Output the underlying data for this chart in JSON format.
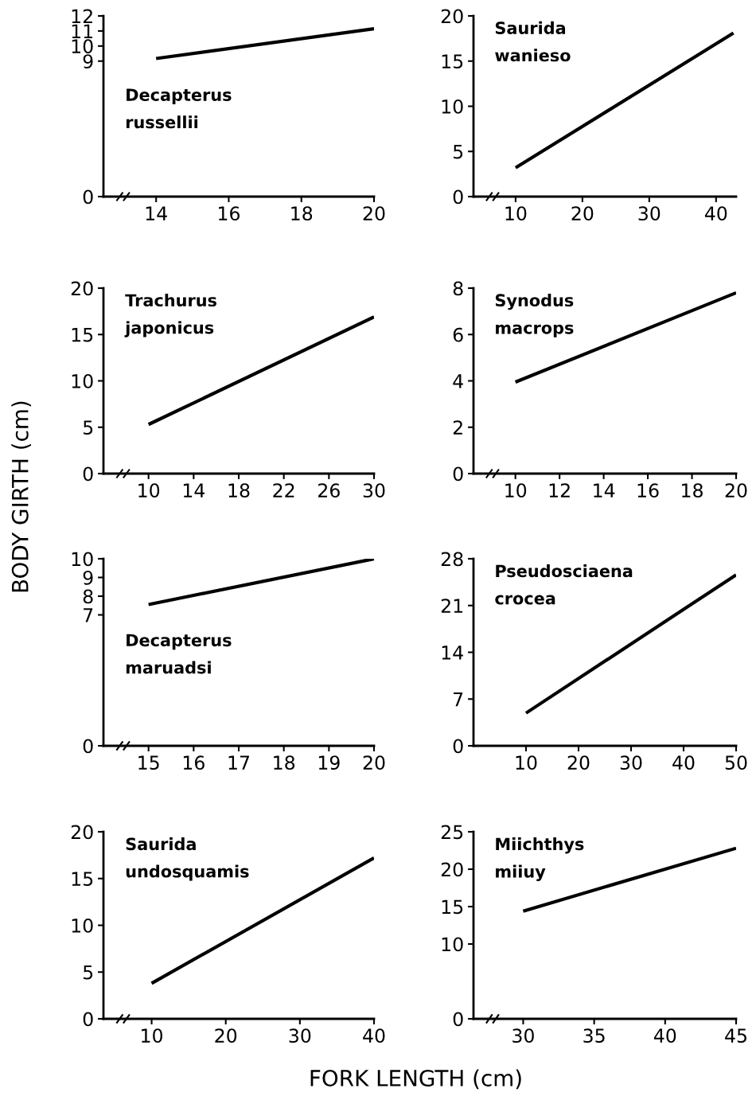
{
  "chart_data": [
    {
      "type": "line",
      "title": "Decapterus\nrussellii",
      "x": [
        14,
        20
      ],
      "series": [
        {
          "color": "#000000",
          "values": [
            9.17,
            11.15
          ]
        }
      ],
      "xlim": [
        12.55,
        20
      ],
      "xticks": [
        14,
        16,
        18,
        20
      ],
      "ylim": [
        0,
        12
      ],
      "yticks": [
        0,
        9,
        10,
        11,
        12
      ],
      "grid": false,
      "legend": false
    },
    {
      "type": "line",
      "title": "Saurida\nwanieso",
      "x": [
        10,
        42.6
      ],
      "series": [
        {
          "color": "#000000",
          "values": [
            3.2,
            18.1
          ]
        }
      ],
      "xlim": [
        3.7,
        43
      ],
      "xticks": [
        10,
        20,
        30,
        40
      ],
      "ylim": [
        0,
        20
      ],
      "yticks": [
        0,
        5,
        10,
        15,
        20
      ],
      "grid": false,
      "legend": false
    },
    {
      "type": "line",
      "title": "Trachurus\njaponicus",
      "x": [
        10,
        30
      ],
      "series": [
        {
          "color": "#000000",
          "values": [
            5.3,
            16.9
          ]
        }
      ],
      "xlim": [
        6,
        30
      ],
      "xticks": [
        10,
        14,
        18,
        22,
        26,
        30
      ],
      "ylim": [
        0,
        20
      ],
      "yticks": [
        0,
        5,
        10,
        15,
        20
      ],
      "grid": false,
      "legend": false
    },
    {
      "type": "line",
      "title": "Synodus\nmacrops",
      "x": [
        10,
        20
      ],
      "series": [
        {
          "color": "#000000",
          "values": [
            3.95,
            7.8
          ]
        }
      ],
      "xlim": [
        8.1,
        20
      ],
      "xticks": [
        10,
        12,
        14,
        16,
        18,
        20
      ],
      "ylim": [
        0,
        8
      ],
      "yticks": [
        0,
        2,
        4,
        6,
        8
      ],
      "grid": false,
      "legend": false
    },
    {
      "type": "line",
      "title": "Decapterus\nmaruadsi",
      "x": [
        15,
        20
      ],
      "series": [
        {
          "color": "#000000",
          "values": [
            7.55,
            10
          ]
        }
      ],
      "xlim": [
        14,
        20
      ],
      "xticks": [
        15,
        16,
        17,
        18,
        19,
        20
      ],
      "ylim": [
        0,
        10
      ],
      "yticks": [
        0,
        7,
        8,
        9,
        10
      ],
      "grid": false,
      "legend": false
    },
    {
      "type": "line",
      "title": "Pseudosciaena\ncrocea",
      "x": [
        10,
        50
      ],
      "series": [
        {
          "color": "#000000",
          "values": [
            4.9,
            25.6
          ]
        }
      ],
      "xlim": [
        0,
        50
      ],
      "xticks": [
        10,
        20,
        30,
        40,
        50
      ],
      "ylim": [
        0,
        28
      ],
      "yticks": [
        0,
        7,
        14,
        21,
        28
      ],
      "grid": false,
      "legend": false
    },
    {
      "type": "line",
      "title": "Saurida\nundosquamis",
      "x": [
        10,
        40
      ],
      "series": [
        {
          "color": "#000000",
          "values": [
            3.8,
            17.2
          ]
        }
      ],
      "xlim": [
        3.5,
        40
      ],
      "xticks": [
        10,
        20,
        30,
        40
      ],
      "ylim": [
        0,
        20
      ],
      "yticks": [
        0,
        5,
        10,
        15,
        20
      ],
      "grid": false,
      "legend": false
    },
    {
      "type": "line",
      "title": "Miichthys\nmiiuy",
      "x": [
        30,
        45
      ],
      "series": [
        {
          "color": "#000000",
          "values": [
            14.4,
            22.8
          ]
        }
      ],
      "xlim": [
        26.5,
        45
      ],
      "xticks": [
        30,
        35,
        40,
        45
      ],
      "ylim": [
        0,
        25
      ],
      "yticks": [
        0,
        10,
        15,
        20,
        25
      ],
      "grid": false,
      "legend": false
    },
    {
      "type": "other",
      "xlabel": "FORK LENGTH (cm)",
      "ylabel": "BODY GIRTH (cm)"
    }
  ]
}
